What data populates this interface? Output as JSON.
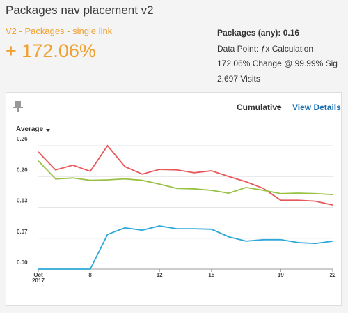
{
  "header": {
    "title": "Packages nav placement v2",
    "segment": "V2 - Packages - single link",
    "change": "+ 172.06%"
  },
  "stats": [
    "Packages (any): 0.16",
    "Data Point: ƒx Calculation",
    "172.06% Change @ 99.99% Sig",
    "2,697 Visits"
  ],
  "controls": {
    "mode": "Cumulative",
    "details": "View Details",
    "metric": "Average"
  },
  "chart_data": {
    "type": "line",
    "x": [
      5,
      6,
      7,
      8,
      9,
      10,
      11,
      12,
      13,
      14,
      15,
      16,
      17,
      18,
      19,
      20,
      21,
      22
    ],
    "series": [
      {
        "color": "#e8585a",
        "values": [
          0.247,
          0.209,
          0.219,
          0.206,
          0.26,
          0.216,
          0.2,
          0.21,
          0.209,
          0.203,
          0.207,
          0.195,
          0.184,
          0.17,
          0.145,
          0.145,
          0.143,
          0.135
        ]
      },
      {
        "color": "#98c143",
        "values": [
          0.228,
          0.19,
          0.192,
          0.187,
          0.188,
          0.19,
          0.187,
          0.179,
          0.17,
          0.169,
          0.166,
          0.16,
          0.172,
          0.166,
          0.159,
          0.16,
          0.159,
          0.157
        ]
      },
      {
        "color": "#2ea7d9",
        "values": [
          0,
          0,
          0,
          0,
          0.073,
          0.087,
          0.082,
          0.091,
          0.085,
          0.085,
          0.084,
          0.068,
          0.059,
          0.062,
          0.062,
          0.056,
          0.054,
          0.059
        ]
      }
    ],
    "xlim": [
      5,
      22
    ],
    "xticks": [
      {
        "value": 5,
        "label": "Oct 2017"
      },
      8,
      12,
      15,
      19,
      22
    ],
    "ylim": [
      0,
      0.26
    ],
    "yticks": [
      {
        "value": 0,
        "label": "0.00"
      },
      {
        "value": 0.065,
        "label": "0.07"
      },
      {
        "value": 0.13,
        "label": "0.13"
      },
      {
        "value": 0.195,
        "label": "0.20"
      },
      {
        "value": 0.26,
        "label": "0.26"
      }
    ],
    "grid": true
  }
}
